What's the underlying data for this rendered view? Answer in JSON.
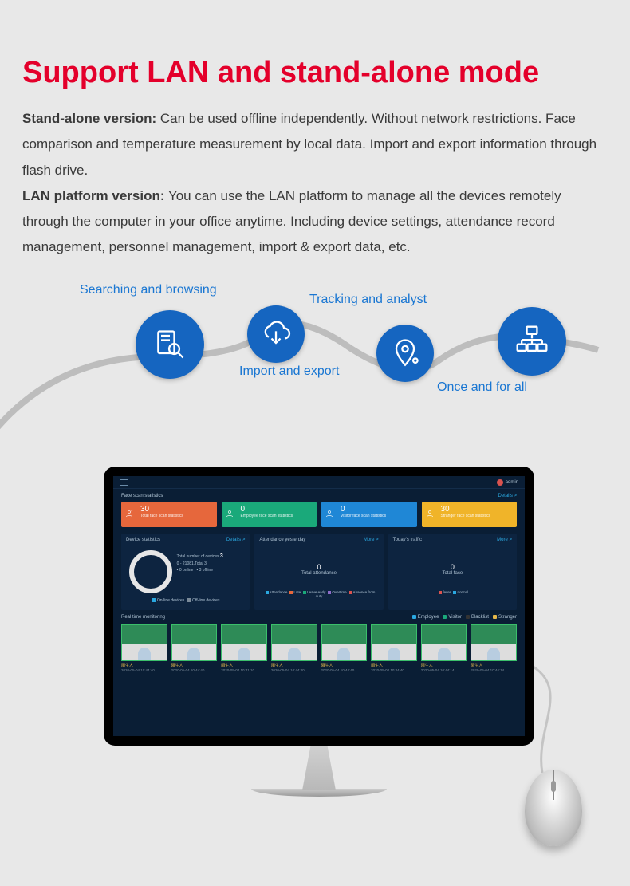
{
  "title": "Support LAN and stand-alone mode",
  "title_color": "#e4002b",
  "desc": {
    "p1_bold": "Stand-alone version:",
    "p1": " Can be used offline independently. Without network restrictions. Face comparison and temperature measurement by local data. Import and export information through flash drive.",
    "p2_bold": "LAN platform version:",
    "p2": "  You can use the LAN platform to manage all the devices remotely through the computer in your office anytime. Including device settings, attendance record management, personnel management, import & export data, etc."
  },
  "flow_labels": {
    "search": "Searching and browsing",
    "import": "Import and export",
    "track": "Tracking and analyst",
    "once": "Once and for all"
  },
  "flow_icon_color": "#1565c0",
  "screen": {
    "bg": "#0a1e35",
    "admin": "admin",
    "section": "Face scan statistics",
    "details": "Details >",
    "more": "More >",
    "cards": [
      {
        "n": "30",
        "label": "Total face scan statistics",
        "color": "#e6673c"
      },
      {
        "n": "0",
        "label": "Employee face scan statistics",
        "color": "#1aa97a"
      },
      {
        "n": "0",
        "label": "Visitor face scan statistics",
        "color": "#1f87d6"
      },
      {
        "n": "30",
        "label": "Stranger face scan statistics",
        "color": "#f0b429"
      }
    ],
    "panels": {
      "device": {
        "title": "Device statistics",
        "total_lbl": "Total number of devices",
        "total": "3",
        "sub": "0 - 21081,Total 3",
        "online": "0 online",
        "offline": "3 offline",
        "leg_on": "On-line devices",
        "leg_off": "Off-line devices"
      },
      "attend": {
        "title": "Attendance yesterday",
        "value": "0",
        "value_lbl": "Total attendance",
        "legend": [
          "Attendance",
          "Late",
          "Leave early",
          "Overtime",
          "Absence from duty"
        ],
        "legend_colors": [
          "#2aa8e0",
          "#e6673c",
          "#1aa97a",
          "#8d6cc9",
          "#d9534f"
        ]
      },
      "traffic": {
        "title": "Today's traffic",
        "value": "0",
        "value_lbl": "Total face",
        "legend": [
          "fever",
          "normal"
        ],
        "legend_colors": [
          "#d9534f",
          "#2aa8e0"
        ]
      }
    },
    "realtime": {
      "title": "Real time monitoring",
      "legend": [
        "Employee",
        "Visitor",
        "Blacklist",
        "Stranger"
      ],
      "legend_colors": [
        "#2aa8e0",
        "#1aa97a",
        "#333333",
        "#e6b84a"
      ],
      "items": [
        {
          "name": "陌生人",
          "ts": "2020-05-04 10:44:40"
        },
        {
          "name": "陌生人",
          "ts": "2020-05-04 10:44:40"
        },
        {
          "name": "陌生人",
          "ts": "2020-05-04 10:41:10"
        },
        {
          "name": "陌生人",
          "ts": "2020-05-04 10:44:40"
        },
        {
          "name": "陌生人",
          "ts": "2020-05-04 10:44:40"
        },
        {
          "name": "陌生人",
          "ts": "2020-05-04 10:44:40"
        },
        {
          "name": "陌生人",
          "ts": "2020-05-04 10:44:14"
        },
        {
          "name": "陌生人",
          "ts": "2020-05-04 10:44:14"
        }
      ]
    }
  }
}
